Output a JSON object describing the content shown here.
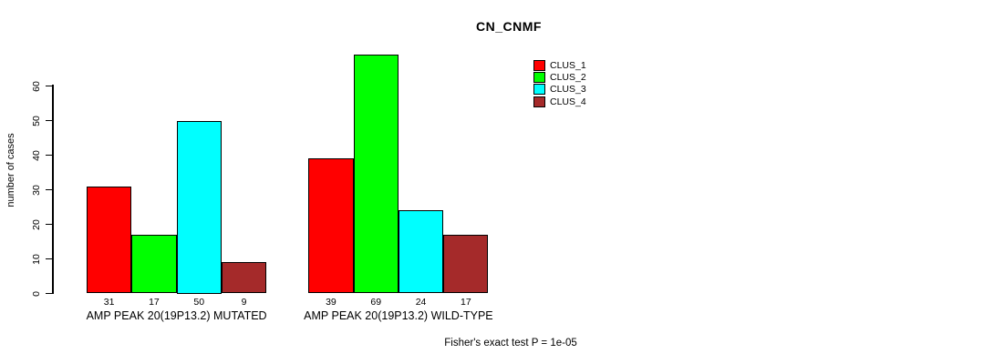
{
  "chart_data": {
    "type": "bar",
    "title": "CN_CNMF",
    "ylabel": "number of cases",
    "xlabel": "",
    "yticks": [
      0,
      10,
      20,
      30,
      40,
      50,
      60
    ],
    "ylim": [
      0,
      72
    ],
    "grid": false,
    "legend_position": "top-right-inside",
    "categories": [
      "AMP PEAK 20(19P13.2) MUTATED",
      "AMP PEAK 20(19P13.2) WILD-TYPE"
    ],
    "series": [
      {
        "name": "CLUS_1",
        "color": "#FF0000",
        "values": [
          31,
          39
        ]
      },
      {
        "name": "CLUS_2",
        "color": "#00FF00",
        "values": [
          17,
          69
        ]
      },
      {
        "name": "CLUS_3",
        "color": "#00FFFF",
        "values": [
          50,
          24
        ]
      },
      {
        "name": "CLUS_4",
        "color": "#A52A2A",
        "values": [
          9,
          17
        ]
      }
    ],
    "bar_value_labels": [
      [
        31,
        17,
        50,
        9
      ],
      [
        39,
        69,
        24,
        17
      ]
    ],
    "annotation": "Fisher's exact test P = 1e-05"
  },
  "colors": {
    "background": "#FFFFFF",
    "axis": "#000000",
    "text": "#000000"
  }
}
